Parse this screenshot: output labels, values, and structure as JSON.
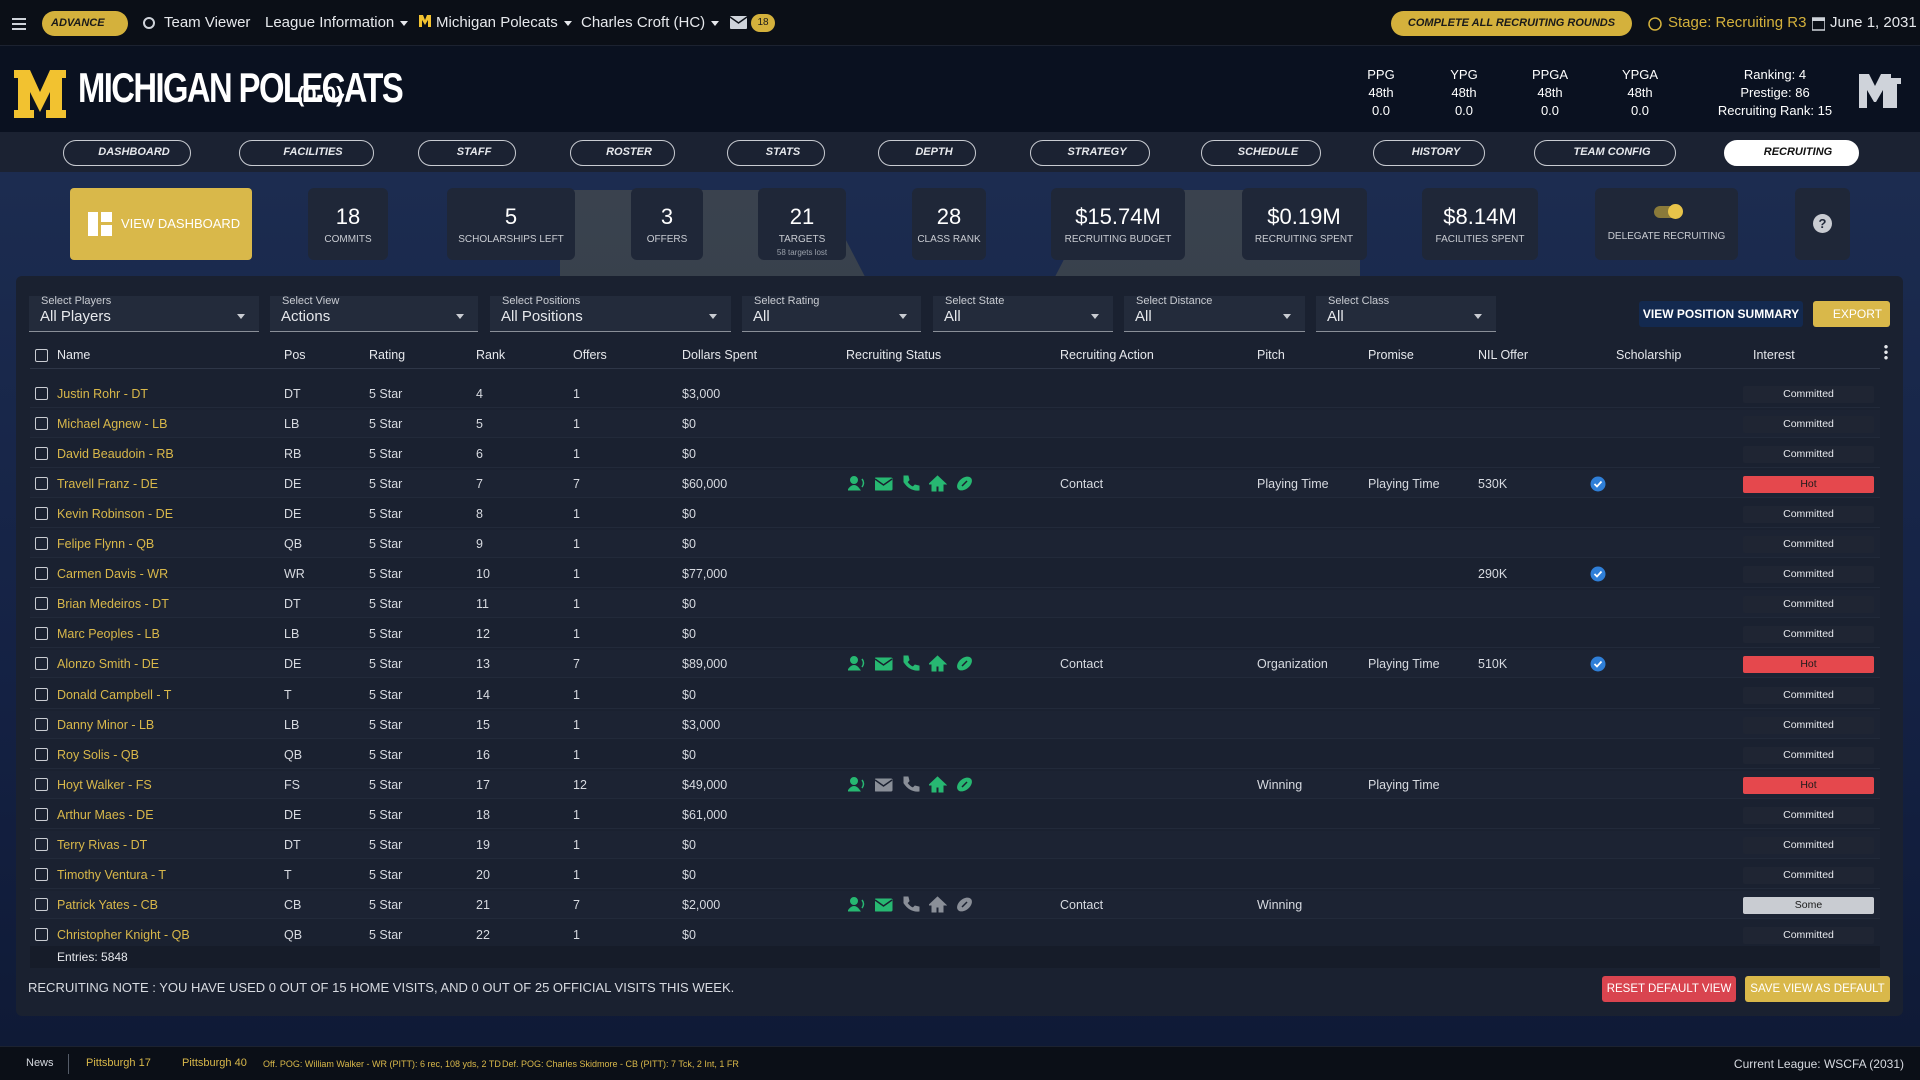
{
  "top_bar": {
    "advance": "ADVANCE",
    "team_viewer": "Team Viewer",
    "league_information": "League Information",
    "team": "Michigan Polecats",
    "coach": "Charles Croft (HC)",
    "mail_count": "18",
    "complete_rounds": "COMPLETE ALL RECRUITING ROUNDS",
    "stage": "Stage: Recruiting R3",
    "date": "June 1, 2031"
  },
  "header": {
    "team_name": "MICHIGAN POLECATS",
    "record": "(0-0)",
    "stats": [
      {
        "label": "PPG",
        "rank": "48th",
        "value": "0.0"
      },
      {
        "label": "YPG",
        "rank": "48th",
        "value": "0.0"
      },
      {
        "label": "PPGA",
        "rank": "48th",
        "value": "0.0"
      },
      {
        "label": "YPGA",
        "rank": "48th",
        "value": "0.0"
      }
    ],
    "ranking": "Ranking: 4",
    "prestige": "Prestige: 86",
    "recruiting_rank": "Recruiting Rank: 15"
  },
  "nav": [
    "DASHBOARD",
    "FACILITIES",
    "STAFF",
    "ROSTER",
    "STATS",
    "DEPTH",
    "STRATEGY",
    "SCHEDULE",
    "HISTORY",
    "TEAM CONFIG",
    "RECRUITING"
  ],
  "summary": {
    "view_dashboard": "VIEW DASHBOARD",
    "cards": [
      {
        "value": "18",
        "label": "COMMITS"
      },
      {
        "value": "5",
        "label": "SCHOLARSHIPS LEFT"
      },
      {
        "value": "3",
        "label": "OFFERS"
      },
      {
        "value": "21",
        "label": "TARGETS",
        "sub": "58 targets lost"
      },
      {
        "value": "28",
        "label": "CLASS RANK"
      },
      {
        "value": "$15.74M",
        "label": "RECRUITING BUDGET"
      },
      {
        "value": "$0.19M",
        "label": "RECRUITING SPENT"
      },
      {
        "value": "$8.14M",
        "label": "FACILITIES SPENT"
      }
    ],
    "delegate": "DELEGATE RECRUITING",
    "help": "?"
  },
  "filters": [
    {
      "label": "Select Players",
      "value": "All Players"
    },
    {
      "label": "Select View",
      "value": "Actions"
    },
    {
      "label": "Select Positions",
      "value": "All Positions"
    },
    {
      "label": "Select Rating",
      "value": "All"
    },
    {
      "label": "Select State",
      "value": "All"
    },
    {
      "label": "Select Distance",
      "value": "All"
    },
    {
      "label": "Select Class",
      "value": "All"
    }
  ],
  "buttons": {
    "position_summary": "VIEW POSITION SUMMARY",
    "export": "EXPORT",
    "reset": "RESET DEFAULT VIEW",
    "save": "SAVE VIEW AS DEFAULT"
  },
  "table": {
    "columns": [
      "Name",
      "Pos",
      "Rating",
      "Rank",
      "Offers",
      "Dollars Spent",
      "Recruiting Status",
      "Recruiting Action",
      "Pitch",
      "Promise",
      "NIL Offer",
      "Scholarship",
      "Interest"
    ],
    "rows": [
      {
        "name": "Justin Rohr - DT",
        "pos": "DT",
        "rating": "5 Star",
        "rank": 4,
        "offers": 1,
        "dollars": "$3,000",
        "interest": "Committed"
      },
      {
        "name": "Michael Agnew - LB",
        "pos": "LB",
        "rating": "5 Star",
        "rank": 5,
        "offers": 1,
        "dollars": "$0",
        "interest": "Committed"
      },
      {
        "name": "David Beaudoin - RB",
        "pos": "RB",
        "rating": "5 Star",
        "rank": 6,
        "offers": 1,
        "dollars": "$0",
        "interest": "Committed"
      },
      {
        "name": "Travell Franz - DE",
        "pos": "DE",
        "rating": "5 Star",
        "rank": 7,
        "offers": 7,
        "dollars": "$60,000",
        "status": [
          true,
          true,
          true,
          true,
          true
        ],
        "action": "Contact",
        "pitch": "Playing Time",
        "promise": "Playing Time",
        "nil": "530K",
        "scholarship": true,
        "interest": "Hot",
        "interest_color": "#e5484d"
      },
      {
        "name": "Kevin Robinson - DE",
        "pos": "DE",
        "rating": "5 Star",
        "rank": 8,
        "offers": 1,
        "dollars": "$0",
        "interest": "Committed"
      },
      {
        "name": "Felipe Flynn - QB",
        "pos": "QB",
        "rating": "5 Star",
        "rank": 9,
        "offers": 1,
        "dollars": "$0",
        "interest": "Committed"
      },
      {
        "name": "Carmen Davis - WR",
        "pos": "WR",
        "rating": "5 Star",
        "rank": 10,
        "offers": 1,
        "dollars": "$77,000",
        "nil": "290K",
        "scholarship": true,
        "interest": "Committed"
      },
      {
        "name": "Brian Medeiros - DT",
        "pos": "DT",
        "rating": "5 Star",
        "rank": 11,
        "offers": 1,
        "dollars": "$0",
        "interest": "Committed"
      },
      {
        "name": "Marc Peoples - LB",
        "pos": "LB",
        "rating": "5 Star",
        "rank": 12,
        "offers": 1,
        "dollars": "$0",
        "interest": "Committed"
      },
      {
        "name": "Alonzo Smith - DE",
        "pos": "DE",
        "rating": "5 Star",
        "rank": 13,
        "offers": 7,
        "dollars": "$89,000",
        "status": [
          true,
          true,
          true,
          true,
          true
        ],
        "action": "Contact",
        "pitch": "Organization",
        "promise": "Playing Time",
        "nil": "510K",
        "scholarship": true,
        "interest": "Hot",
        "interest_color": "#e5484d"
      },
      {
        "name": "Donald Campbell - T",
        "pos": "T",
        "rating": "5 Star",
        "rank": 14,
        "offers": 1,
        "dollars": "$0",
        "interest": "Committed"
      },
      {
        "name": "Danny Minor - LB",
        "pos": "LB",
        "rating": "5 Star",
        "rank": 15,
        "offers": 1,
        "dollars": "$3,000",
        "interest": "Committed"
      },
      {
        "name": "Roy Solis - QB",
        "pos": "QB",
        "rating": "5 Star",
        "rank": 16,
        "offers": 1,
        "dollars": "$0",
        "interest": "Committed"
      },
      {
        "name": "Hoyt Walker - FS",
        "pos": "FS",
        "rating": "5 Star",
        "rank": 17,
        "offers": 12,
        "dollars": "$49,000",
        "status": [
          true,
          false,
          false,
          true,
          true
        ],
        "pitch": "Winning",
        "promise": "Playing Time",
        "interest": "Hot",
        "interest_color": "#e5484d"
      },
      {
        "name": "Arthur Maes - DE",
        "pos": "DE",
        "rating": "5 Star",
        "rank": 18,
        "offers": 1,
        "dollars": "$61,000",
        "interest": "Committed"
      },
      {
        "name": "Terry Rivas - DT",
        "pos": "DT",
        "rating": "5 Star",
        "rank": 19,
        "offers": 1,
        "dollars": "$0",
        "interest": "Committed"
      },
      {
        "name": "Timothy Ventura - T",
        "pos": "T",
        "rating": "5 Star",
        "rank": 20,
        "offers": 1,
        "dollars": "$0",
        "interest": "Committed"
      },
      {
        "name": "Patrick Yates - CB",
        "pos": "CB",
        "rating": "5 Star",
        "rank": 21,
        "offers": 7,
        "dollars": "$2,000",
        "status": [
          true,
          true,
          false,
          false,
          false
        ],
        "action": "Contact",
        "pitch": "Winning",
        "interest": "Some",
        "interest_color": "#c9ccd2"
      },
      {
        "name": "Christopher Knight - QB",
        "pos": "QB",
        "rating": "5 Star",
        "rank": 22,
        "offers": 1,
        "dollars": "$0",
        "interest": "Committed"
      }
    ],
    "entries": "Entries: 5848"
  },
  "note": "RECRUITING NOTE : YOU HAVE USED 0 OUT OF 15 HOME VISITS, AND 0 OUT OF 25 OFFICIAL VISITS THIS WEEK.",
  "footer": {
    "news": "News",
    "game1": "Pittsburgh 17",
    "game2": "Pittsburgh 40",
    "off_pog": "Off. POG: William Walker - WR (PITT): 6 rec, 108 yds, 2 TD",
    "def_pog": "Def. POG: Charles Skidmore - CB (PITT): 7 Tck, 2 Int, 1 FR",
    "league": "Current League: WSCFA (2031)"
  }
}
